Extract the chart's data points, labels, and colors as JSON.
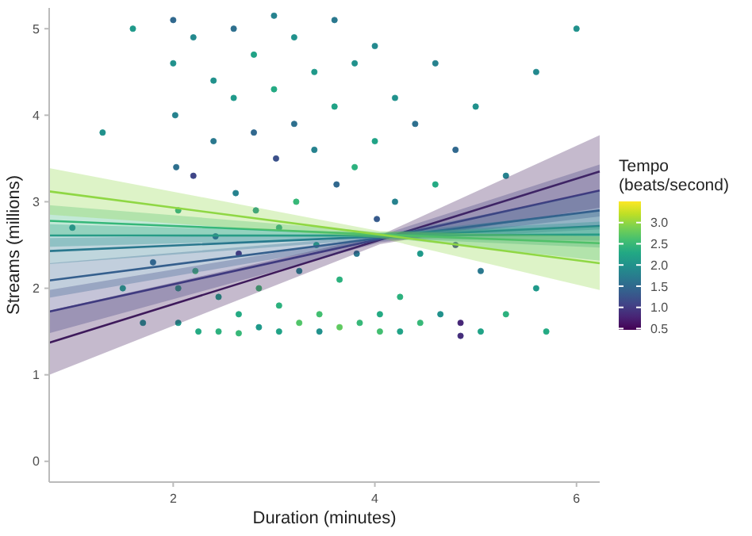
{
  "chart_data": {
    "type": "line",
    "xlabel": "Duration (minutes)",
    "ylabel": "Streams (millions)",
    "clabel": "Tempo (beats/second)",
    "xlim": [
      0.77,
      6.23
    ],
    "ylim": [
      -0.24,
      5.24
    ],
    "xticks": [
      2,
      4,
      6
    ],
    "yticks": [
      0,
      1,
      2,
      3,
      4,
      5
    ],
    "clim": [
      0.47,
      3.5
    ],
    "cticks": [
      0.5,
      {
        "value": 1,
        "label": "1.0"
      },
      1.5,
      {
        "value": 2,
        "label": "2.0"
      },
      2.5,
      {
        "value": 3,
        "label": "3.0"
      }
    ],
    "grid": false,
    "series": [
      {
        "type": "scatter",
        "marker": "circle",
        "x": [
          2.0,
          2.0,
          2.02,
          2.03,
          2.05,
          2.05,
          2.05,
          2.2,
          2.2,
          2.22,
          2.25,
          2.4,
          2.4,
          2.42,
          2.45,
          2.45,
          2.6,
          2.6,
          2.62,
          2.65,
          2.65,
          2.65,
          2.8,
          2.8,
          2.82,
          2.85,
          2.85,
          3.0,
          3.0,
          3.02,
          3.05,
          3.05,
          3.05,
          3.2,
          3.2,
          3.22,
          3.25,
          3.25,
          3.4,
          3.4,
          3.42,
          3.45,
          3.45,
          3.6,
          3.6,
          3.62,
          3.65,
          3.65,
          3.8,
          3.8,
          3.82,
          3.85,
          4.0,
          4.0,
          4.02,
          4.05,
          4.05,
          4.2,
          4.2,
          4.25,
          4.25,
          4.4,
          4.45,
          4.45,
          4.6,
          4.6,
          4.65,
          4.8,
          4.8,
          4.85,
          4.85,
          5.0,
          5.05,
          5.05,
          5.3,
          5.3,
          5.6,
          5.6,
          5.7,
          6.0,
          1.3,
          1.0,
          1.5,
          1.7,
          1.8,
          1.6
        ],
        "values": [
          5.1,
          4.6,
          4.0,
          3.4,
          2.9,
          2.0,
          1.6,
          4.9,
          3.3,
          2.2,
          1.5,
          4.4,
          3.7,
          2.6,
          1.9,
          1.5,
          5.0,
          4.2,
          3.1,
          2.4,
          1.7,
          1.48,
          4.7,
          3.8,
          2.9,
          2.0,
          1.55,
          5.15,
          4.3,
          3.5,
          2.7,
          1.8,
          1.5,
          4.9,
          3.9,
          3.0,
          2.2,
          1.6,
          4.5,
          3.6,
          2.5,
          1.7,
          1.5,
          5.1,
          4.1,
          3.2,
          2.1,
          1.55,
          4.6,
          3.4,
          2.4,
          1.6,
          4.8,
          3.7,
          2.8,
          1.7,
          1.5,
          4.2,
          3.0,
          1.9,
          1.5,
          3.9,
          2.4,
          1.6,
          4.6,
          3.2,
          1.7,
          3.6,
          2.5,
          1.6,
          1.45,
          4.1,
          2.2,
          1.5,
          3.3,
          1.7,
          4.5,
          2.0,
          1.5,
          5.0,
          3.8,
          2.7,
          2.0,
          1.6,
          2.3,
          5.0
        ],
        "colors": [
          "#31688e",
          "#21918c",
          "#26828e",
          "#2e6f8e",
          "#20a386",
          "#2cb17e",
          "#1f998a",
          "#23898e",
          "#414487",
          "#42be71",
          "#24aa83",
          "#21918c",
          "#2a788e",
          "#38588c",
          "#20a386",
          "#2cb17e",
          "#2e6f8e",
          "#1f998a",
          "#26828e",
          "#472c7a",
          "#24aa83",
          "#37b878",
          "#20a386",
          "#31688e",
          "#21918c",
          "#42be71",
          "#1f998a",
          "#26828e",
          "#24aa83",
          "#3d4e8a",
          "#21918c",
          "#2cb17e",
          "#20a386",
          "#21918c",
          "#2e6f8e",
          "#37b878",
          "#23898e",
          "#50c46a",
          "#1f998a",
          "#26828e",
          "#24aa83",
          "#42be71",
          "#21918c",
          "#2a788e",
          "#20a386",
          "#31688e",
          "#2cb17e",
          "#5ec962",
          "#21918c",
          "#2cb17e",
          "#2a788e",
          "#37b878",
          "#23898e",
          "#20a386",
          "#38588c",
          "#24aa83",
          "#42be71",
          "#21918c",
          "#26828e",
          "#2cb17e",
          "#20a386",
          "#2e6f8e",
          "#1f998a",
          "#37b878",
          "#26828e",
          "#24aa83",
          "#21918c",
          "#31688e",
          "#414487",
          "#482576",
          "#472c7a",
          "#21918c",
          "#2a788e",
          "#20a386",
          "#26828e",
          "#2cb17e",
          "#23898e",
          "#1f998a",
          "#24aa83",
          "#21918c",
          "#21918c",
          "#26828e",
          "#20a386",
          "#21918c",
          "#31688e",
          "#1f998a"
        ],
        "cvalues": [
          1.5,
          2.0,
          1.8,
          1.6,
          2.2,
          2.4,
          2.1,
          1.9,
          1.2,
          2.6,
          2.3,
          2.0,
          1.7,
          1.4,
          2.2,
          2.4,
          1.6,
          2.1,
          1.8,
          1.0,
          2.3,
          2.5,
          2.2,
          1.5,
          2.0,
          2.6,
          2.1,
          1.8,
          2.3,
          1.3,
          2.0,
          2.4,
          2.2,
          2.0,
          1.6,
          2.5,
          1.9,
          2.7,
          2.1,
          1.8,
          2.3,
          2.6,
          2.0,
          1.7,
          2.2,
          1.5,
          2.4,
          2.8,
          2.0,
          2.4,
          1.7,
          2.5,
          1.9,
          2.2,
          1.4,
          2.3,
          2.6,
          2.0,
          1.8,
          2.4,
          2.2,
          1.6,
          2.1,
          2.5,
          1.8,
          2.3,
          2.0,
          1.5,
          1.2,
          0.9,
          1.0,
          2.0,
          1.7,
          2.2,
          1.8,
          2.4,
          1.9,
          2.1,
          2.3,
          2.0,
          2.0,
          1.8,
          2.2,
          2.0,
          1.5,
          2.1
        ]
      },
      {
        "color": "#3e1a5b",
        "x": [
          0.77,
          4.05,
          6.23
        ],
        "values": [
          1.37,
          2.56,
          3.35
        ],
        "lower": [
          1.0,
          2.51,
          2.93
        ],
        "upper": [
          1.74,
          2.61,
          3.77
        ]
      },
      {
        "color": "#3f3a7f",
        "x": [
          0.77,
          4.05,
          6.23
        ],
        "values": [
          1.73,
          2.57,
          3.13
        ],
        "lower": [
          1.48,
          2.53,
          2.83
        ],
        "upper": [
          1.98,
          2.61,
          3.43
        ]
      },
      {
        "color": "#355f8d",
        "x": [
          0.77,
          4.05,
          6.23
        ],
        "values": [
          2.09,
          2.58,
          2.9
        ],
        "lower": [
          1.89,
          2.55,
          2.68
        ],
        "upper": [
          2.29,
          2.61,
          3.12
        ]
      },
      {
        "color": "#2a788e",
        "x": [
          0.77,
          4.05,
          6.23
        ],
        "values": [
          2.43,
          2.6,
          2.72
        ],
        "lower": [
          2.28,
          2.57,
          2.55
        ],
        "upper": [
          2.58,
          2.63,
          2.89
        ]
      },
      {
        "color": "#21918c",
        "x": [
          0.77,
          4.05,
          6.23
        ],
        "values": [
          2.61,
          2.61,
          2.62
        ],
        "lower": [
          2.48,
          2.58,
          2.47
        ],
        "upper": [
          2.74,
          2.64,
          2.77
        ]
      },
      {
        "color": "#35b779",
        "x": [
          0.77,
          4.05,
          6.23
        ],
        "values": [
          2.78,
          2.62,
          2.52
        ],
        "lower": [
          2.6,
          2.59,
          2.32
        ],
        "upper": [
          2.96,
          2.65,
          2.72
        ]
      },
      {
        "color": "#8fd744",
        "x": [
          0.77,
          4.05,
          6.23
        ],
        "values": [
          3.12,
          2.62,
          2.29
        ],
        "lower": [
          2.85,
          2.58,
          1.98
        ],
        "upper": [
          3.39,
          2.66,
          2.6
        ]
      }
    ]
  }
}
